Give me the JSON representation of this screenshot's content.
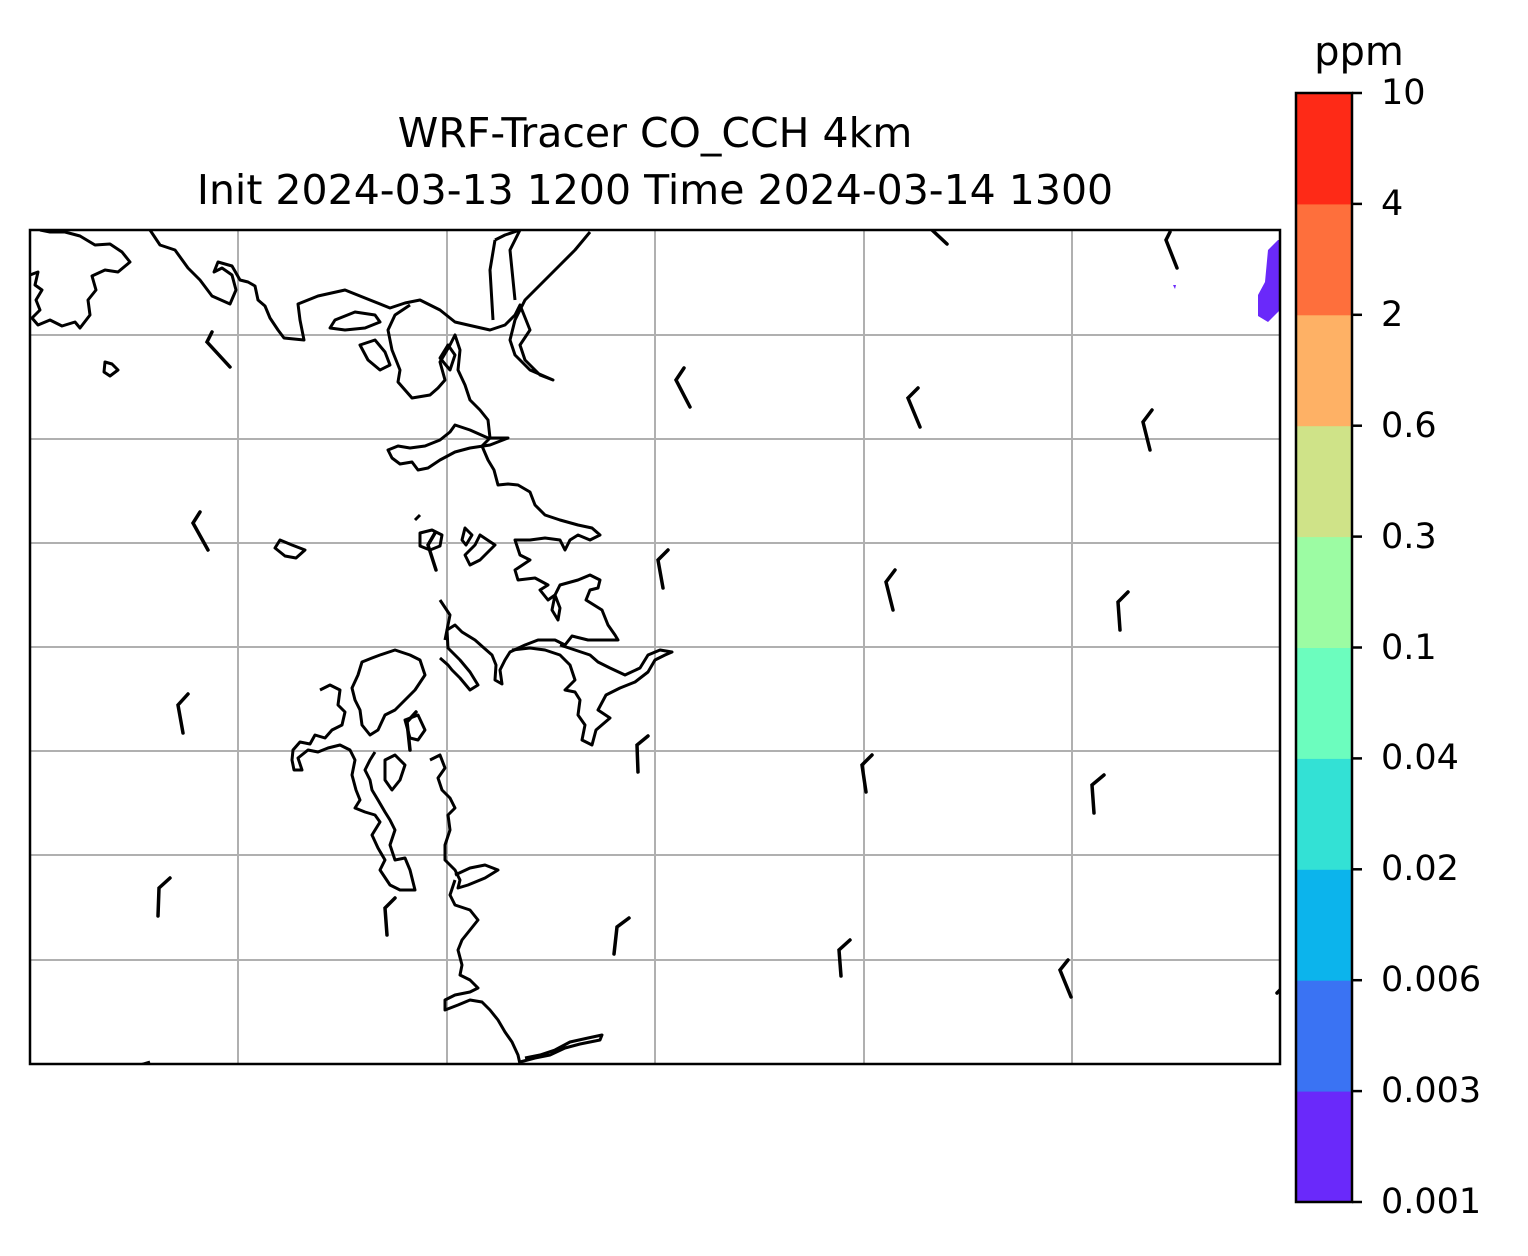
{
  "title_line1": "WRF-Tracer CO_CCH 4km",
  "title_line2": "Init 2024-03-13 1200 Time 2024-03-14 1300",
  "colorbar": {
    "unit": "ppm",
    "tick_labels": [
      "10",
      "4",
      "2",
      "0.6",
      "0.3",
      "0.1",
      "0.04",
      "0.02",
      "0.006",
      "0.003",
      "0.001"
    ],
    "levels": [
      0.001,
      0.003,
      0.006,
      0.02,
      0.04,
      0.1,
      0.3,
      0.6,
      2,
      4,
      10
    ],
    "colors": [
      "#6a29fa",
      "#3a73f3",
      "#0cb4ec",
      "#33e1d5",
      "#6cfdbe",
      "#9cfca3",
      "#cfe388",
      "#feb165",
      "#fe6f3c",
      "#fe2a17"
    ]
  },
  "map": {
    "gridlines": true,
    "plume_color": "#6a29fa",
    "wind_barbs": true
  }
}
